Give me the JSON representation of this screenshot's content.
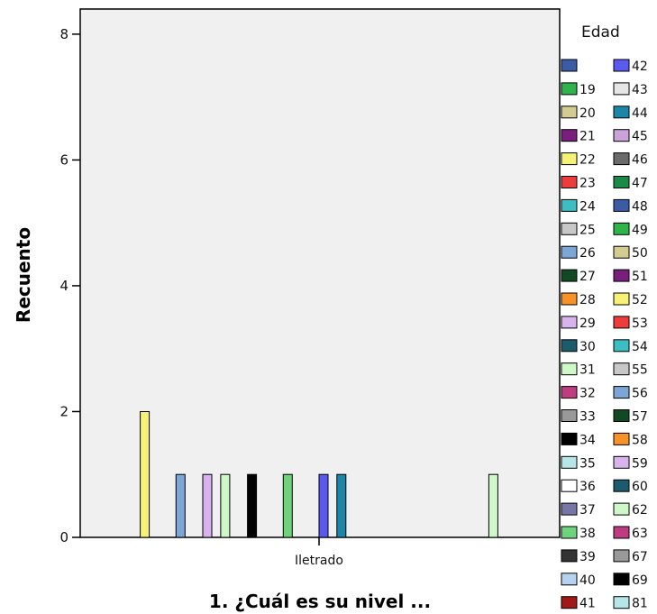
{
  "chart_data": {
    "type": "bar",
    "title": "",
    "xlabel": "1. ¿Cuál es su nivel ...",
    "ylabel": "Recuento",
    "categories": [
      "Iletrado"
    ],
    "ylim": [
      0,
      8.4
    ],
    "yticks": [
      "0",
      "2",
      "4",
      "6",
      "8"
    ],
    "grid": false,
    "legend_title": "Edad",
    "legend_position": "right",
    "series": [
      {
        "name": "",
        "color": "#3B5BA5",
        "value": 0
      },
      {
        "name": "19",
        "color": "#2FB34B",
        "value": 0
      },
      {
        "name": "20",
        "color": "#D3CB8F",
        "value": 0
      },
      {
        "name": "21",
        "color": "#7A1E7E",
        "value": 0
      },
      {
        "name": "22",
        "color": "#F7F275",
        "value": 2
      },
      {
        "name": "23",
        "color": "#EE3B3B",
        "value": 0
      },
      {
        "name": "24",
        "color": "#3DBEC2",
        "value": 0
      },
      {
        "name": "25",
        "color": "#C8C8C8",
        "value": 0
      },
      {
        "name": "26",
        "color": "#7BA6D6",
        "value": 1
      },
      {
        "name": "27",
        "color": "#114A22",
        "value": 0
      },
      {
        "name": "28",
        "color": "#F79326",
        "value": 0
      },
      {
        "name": "29",
        "color": "#D9B3EE",
        "value": 1
      },
      {
        "name": "30",
        "color": "#1C5A6E",
        "value": 0
      },
      {
        "name": "31",
        "color": "#CFF8C8",
        "value": 1
      },
      {
        "name": "32",
        "color": "#C03C82",
        "value": 0
      },
      {
        "name": "33",
        "color": "#999999",
        "value": 0
      },
      {
        "name": "34",
        "color": "#000000",
        "value": 1
      },
      {
        "name": "35",
        "color": "#B6E6E8",
        "value": 0
      },
      {
        "name": "36",
        "color": "#FFFFFF",
        "value": 0
      },
      {
        "name": "37",
        "color": "#7777A7",
        "value": 0
      },
      {
        "name": "38",
        "color": "#6ED37C",
        "value": 1
      },
      {
        "name": "39",
        "color": "#333333",
        "value": 0
      },
      {
        "name": "40",
        "color": "#B3D3F0",
        "value": 0
      },
      {
        "name": "41",
        "color": "#A01818",
        "value": 0
      },
      {
        "name": "42",
        "color": "#5A5AF0",
        "value": 1
      },
      {
        "name": "43",
        "color": "#E6E6E6",
        "value": 0
      },
      {
        "name": "44",
        "color": "#1D86A8",
        "value": 1
      },
      {
        "name": "45",
        "color": "#C9A3D9",
        "value": 0
      },
      {
        "name": "46",
        "color": "#6B6B6B",
        "value": 0
      },
      {
        "name": "47",
        "color": "#1A8A47",
        "value": 0
      },
      {
        "name": "48",
        "color": "#3B5BA5",
        "value": 0
      },
      {
        "name": "49",
        "color": "#2FB34B",
        "value": 0
      },
      {
        "name": "50",
        "color": "#D3CB8F",
        "value": 0
      },
      {
        "name": "51",
        "color": "#7A1E7E",
        "value": 0
      },
      {
        "name": "52",
        "color": "#F7F275",
        "value": 0
      },
      {
        "name": "53",
        "color": "#EE3B3B",
        "value": 0
      },
      {
        "name": "54",
        "color": "#3DBEC2",
        "value": 0
      },
      {
        "name": "55",
        "color": "#C8C8C8",
        "value": 0
      },
      {
        "name": "56",
        "color": "#7BA6D6",
        "value": 0
      },
      {
        "name": "57",
        "color": "#114A22",
        "value": 0
      },
      {
        "name": "58",
        "color": "#F79326",
        "value": 0
      },
      {
        "name": "59",
        "color": "#D9B3EE",
        "value": 0
      },
      {
        "name": "60",
        "color": "#1C5A6E",
        "value": 0
      },
      {
        "name": "62",
        "color": "#CFF8C8",
        "value": 1
      },
      {
        "name": "63",
        "color": "#C03C82",
        "value": 0
      },
      {
        "name": "67",
        "color": "#999999",
        "value": 0
      },
      {
        "name": "69",
        "color": "#000000",
        "value": 0
      },
      {
        "name": "81",
        "color": "#B6E6E8",
        "value": 0
      }
    ]
  }
}
